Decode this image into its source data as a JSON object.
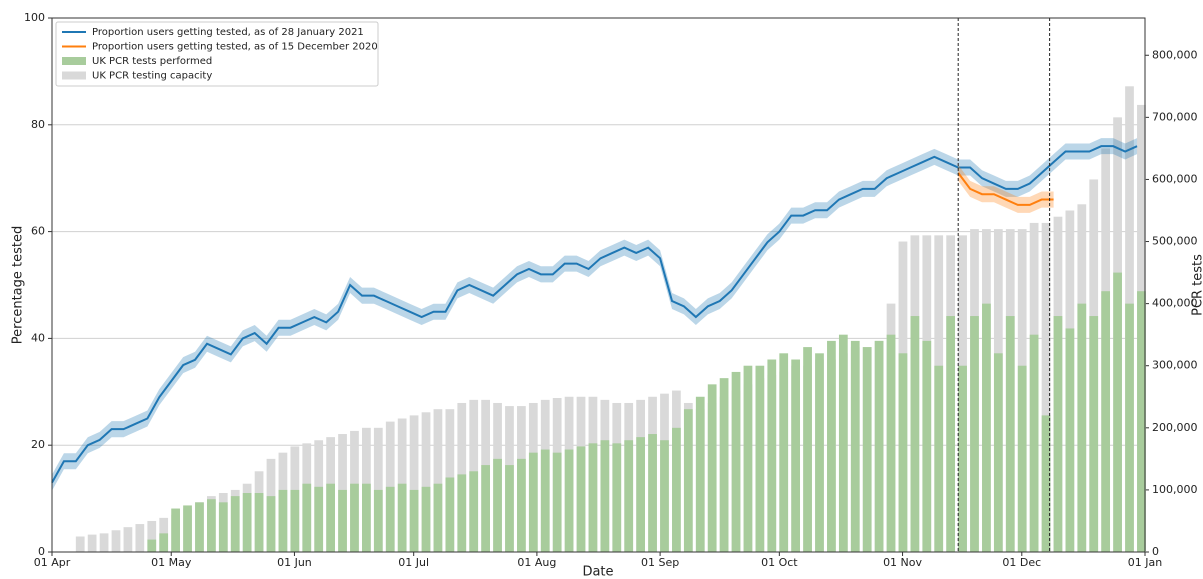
{
  "chart_data": {
    "type": "line",
    "xlabel": "Date",
    "ylabel": "Percentage tested",
    "y2label": "PCR tests",
    "xlim": [
      0,
      275
    ],
    "xticks": [
      {
        "value": 0,
        "label": "01 Apr"
      },
      {
        "value": 30,
        "label": "01 May"
      },
      {
        "value": 61,
        "label": "01 Jun"
      },
      {
        "value": 91,
        "label": "01 Jul"
      },
      {
        "value": 122,
        "label": "01 Aug"
      },
      {
        "value": 153,
        "label": "01 Sep"
      },
      {
        "value": 183,
        "label": "01 Oct"
      },
      {
        "value": 214,
        "label": "01 Nov"
      },
      {
        "value": 244,
        "label": "01 Dec"
      },
      {
        "value": 275,
        "label": "01 Jan"
      }
    ],
    "ylim": [
      0,
      100
    ],
    "yticks": [
      0,
      20,
      40,
      60,
      80,
      100
    ],
    "y2lim": [
      0,
      860000
    ],
    "y2ticks": [
      0,
      {
        "value": 100000,
        "label": "100,000"
      },
      {
        "value": 200000,
        "label": "200,000"
      },
      {
        "value": 300000,
        "label": "300,000"
      },
      {
        "value": 400000,
        "label": "400,000"
      },
      {
        "value": 500000,
        "label": "500,000"
      },
      {
        "value": 600000,
        "label": "600,000"
      },
      {
        "value": 700000,
        "label": "700,000"
      },
      {
        "value": 800000,
        "label": "800,000"
      }
    ],
    "grid": true,
    "legend": "upper left",
    "vlines": [
      228,
      251
    ],
    "series": [
      {
        "name": "UK PCR testing capacity",
        "type": "bar",
        "axis": "y2",
        "color": "#d9d9d9",
        "x": [
          0,
          3,
          6,
          9,
          12,
          15,
          18,
          21,
          24,
          27,
          30,
          33,
          36,
          39,
          42,
          45,
          48,
          51,
          54,
          57,
          60,
          63,
          66,
          69,
          72,
          75,
          78,
          81,
          84,
          87,
          90,
          93,
          96,
          99,
          102,
          105,
          108,
          111,
          114,
          117,
          120,
          123,
          126,
          129,
          132,
          135,
          138,
          141,
          144,
          147,
          150,
          153,
          156,
          159,
          162,
          165,
          168,
          171,
          174,
          177,
          180,
          183,
          186,
          189,
          192,
          195,
          198,
          201,
          204,
          207,
          210,
          213,
          216,
          219,
          222,
          225,
          228,
          231,
          234,
          237,
          240,
          243,
          246,
          249,
          252,
          255,
          258,
          261,
          264,
          267,
          270,
          273
        ],
        "values": [
          null,
          null,
          25000,
          28000,
          30000,
          35000,
          40000,
          45000,
          50000,
          55000,
          60000,
          70000,
          80000,
          90000,
          95000,
          100000,
          110000,
          130000,
          150000,
          160000,
          170000,
          175000,
          180000,
          185000,
          190000,
          195000,
          200000,
          200000,
          210000,
          215000,
          220000,
          225000,
          230000,
          230000,
          240000,
          245000,
          245000,
          240000,
          235000,
          235000,
          240000,
          245000,
          248000,
          250000,
          250000,
          250000,
          245000,
          240000,
          240000,
          245000,
          250000,
          255000,
          260000,
          240000,
          230000,
          240000,
          250000,
          260000,
          270000,
          280000,
          285000,
          290000,
          300000,
          300000,
          310000,
          310000,
          320000,
          330000,
          330000,
          340000,
          400000,
          500000,
          510000,
          510000,
          510000,
          510000,
          510000,
          520000,
          520000,
          520000,
          520000,
          520000,
          530000,
          530000,
          540000,
          550000,
          560000,
          600000,
          650000,
          700000,
          750000,
          720000
        ]
      },
      {
        "name": "UK PCR tests performed",
        "type": "bar",
        "axis": "y2",
        "color": "#a8cc9c",
        "x": [
          0,
          3,
          6,
          9,
          12,
          15,
          18,
          21,
          24,
          27,
          30,
          33,
          36,
          39,
          42,
          45,
          48,
          51,
          54,
          57,
          60,
          63,
          66,
          69,
          72,
          75,
          78,
          81,
          84,
          87,
          90,
          93,
          96,
          99,
          102,
          105,
          108,
          111,
          114,
          117,
          120,
          123,
          126,
          129,
          132,
          135,
          138,
          141,
          144,
          147,
          150,
          153,
          156,
          159,
          162,
          165,
          168,
          171,
          174,
          177,
          180,
          183,
          186,
          189,
          192,
          195,
          198,
          201,
          204,
          207,
          210,
          213,
          216,
          219,
          222,
          225,
          228,
          231,
          234,
          237,
          240,
          243,
          246,
          249,
          252,
          255,
          258,
          261,
          264,
          267,
          270,
          273
        ],
        "values": [
          null,
          null,
          null,
          null,
          null,
          null,
          null,
          null,
          20000,
          30000,
          70000,
          75000,
          80000,
          85000,
          80000,
          90000,
          95000,
          95000,
          90000,
          100000,
          100000,
          110000,
          105000,
          110000,
          100000,
          110000,
          110000,
          100000,
          105000,
          110000,
          100000,
          105000,
          110000,
          120000,
          125000,
          130000,
          140000,
          150000,
          140000,
          150000,
          160000,
          165000,
          160000,
          165000,
          170000,
          175000,
          180000,
          175000,
          180000,
          185000,
          190000,
          180000,
          200000,
          230000,
          250000,
          270000,
          280000,
          290000,
          300000,
          300000,
          310000,
          320000,
          310000,
          330000,
          320000,
          340000,
          350000,
          340000,
          330000,
          340000,
          350000,
          320000,
          380000,
          340000,
          300000,
          380000,
          300000,
          380000,
          400000,
          320000,
          380000,
          300000,
          350000,
          220000,
          380000,
          360000,
          400000,
          380000,
          420000,
          450000,
          400000,
          420000
        ]
      },
      {
        "name": "Proportion users getting tested, as of 28 January 2021",
        "type": "line",
        "axis": "y",
        "color": "#1f77b4",
        "ci": 1.5,
        "x": [
          0,
          3,
          6,
          9,
          12,
          15,
          18,
          21,
          24,
          27,
          30,
          33,
          36,
          39,
          42,
          45,
          48,
          51,
          54,
          57,
          60,
          63,
          66,
          69,
          72,
          75,
          78,
          81,
          84,
          87,
          90,
          93,
          96,
          99,
          102,
          105,
          108,
          111,
          114,
          117,
          120,
          123,
          126,
          129,
          132,
          135,
          138,
          141,
          144,
          147,
          150,
          153,
          156,
          159,
          162,
          165,
          168,
          171,
          174,
          177,
          180,
          183,
          186,
          189,
          192,
          195,
          198,
          201,
          204,
          207,
          210,
          213,
          216,
          219,
          222,
          225,
          228,
          231,
          234,
          237,
          240,
          243,
          246,
          249,
          252,
          255,
          258,
          261,
          264,
          267,
          270,
          273
        ],
        "values": [
          13,
          17,
          17,
          20,
          21,
          23,
          23,
          24,
          25,
          29,
          32,
          35,
          36,
          39,
          38,
          37,
          40,
          41,
          39,
          42,
          42,
          43,
          44,
          43,
          45,
          50,
          48,
          48,
          47,
          46,
          45,
          44,
          45,
          45,
          49,
          50,
          49,
          48,
          50,
          52,
          53,
          52,
          52,
          54,
          54,
          53,
          55,
          56,
          57,
          56,
          57,
          55,
          47,
          46,
          44,
          46,
          47,
          49,
          52,
          55,
          58,
          60,
          63,
          63,
          64,
          64,
          66,
          67,
          68,
          68,
          70,
          71,
          72,
          73,
          74,
          73,
          72,
          72,
          70,
          69,
          68,
          68,
          69,
          71,
          73,
          75,
          75,
          75,
          76,
          76,
          75,
          76
        ]
      },
      {
        "name": "Proportion users getting tested, as of 15 December 2020",
        "type": "line",
        "axis": "y",
        "color": "#ff7f0e",
        "ci": 1.5,
        "x": [
          228,
          231,
          234,
          237,
          240,
          243,
          246,
          249,
          252
        ],
        "values": [
          71,
          68,
          67,
          67,
          66,
          65,
          65,
          66,
          66
        ]
      }
    ]
  }
}
